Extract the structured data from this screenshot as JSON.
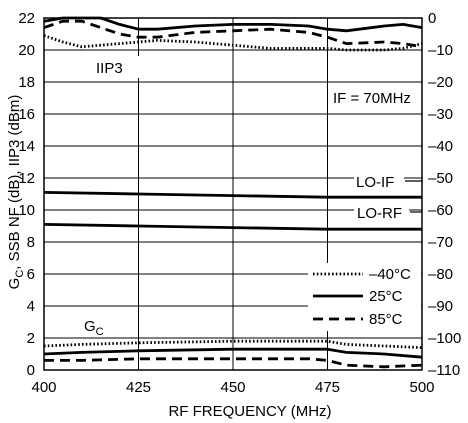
{
  "chart_data": {
    "type": "line",
    "title": "",
    "xlabel": "RF FREQUENCY (MHz)",
    "ylabel_left_main": "G",
    "ylabel_left_sub": "C",
    "ylabel_left_rest": ", SSB NF (dB), IIP3 (dBm)",
    "x_ticks": [
      "400",
      "425",
      "450",
      "475",
      "500"
    ],
    "x_range": [
      400,
      500
    ],
    "y_left_ticks": [
      "0",
      "2",
      "4",
      "6",
      "8",
      "10",
      "12",
      "14",
      "16",
      "18",
      "20",
      "22"
    ],
    "y_left_range": [
      0,
      22
    ],
    "y_right_ticks": [
      "0",
      "–10",
      "–20",
      "–30",
      "–40",
      "–50",
      "–60",
      "–70",
      "–80",
      "–90",
      "–100",
      "–110"
    ],
    "y_right_range": [
      -110,
      0
    ],
    "grid": true,
    "annotations": {
      "iip3": "IIP3",
      "if_cond": "IF = 70MHz",
      "lo_if": "LO-IF",
      "lo_rf": "LO-RF",
      "gc_main": "G",
      "gc_sub": "C"
    },
    "legend": {
      "placement": "bottom-right",
      "entries": [
        {
          "label": "–40°C",
          "style": "dotted"
        },
        {
          "label": "25°C",
          "style": "solid"
        },
        {
          "label": "85°C",
          "style": "dashed"
        }
      ]
    },
    "series": [
      {
        "group": "IIP3",
        "temp": "–40°C",
        "style": "dotted",
        "axis": "left",
        "x": [
          400,
          405,
          410,
          415,
          420,
          425,
          430,
          440,
          450,
          460,
          470,
          475,
          480,
          490,
          495,
          500
        ],
        "y": [
          20.9,
          20.5,
          20.2,
          20.3,
          20.4,
          20.5,
          20.6,
          20.5,
          20.3,
          20.1,
          20.1,
          20.1,
          20.0,
          20.0,
          20.1,
          20.4
        ]
      },
      {
        "group": "IIP3",
        "temp": "25°C",
        "style": "solid",
        "axis": "left",
        "x": [
          400,
          405,
          410,
          415,
          420,
          425,
          430,
          440,
          450,
          460,
          470,
          475,
          480,
          490,
          495,
          500
        ],
        "y": [
          21.8,
          22.0,
          22.0,
          22.0,
          21.6,
          21.3,
          21.3,
          21.5,
          21.6,
          21.6,
          21.5,
          21.3,
          21.2,
          21.5,
          21.6,
          21.4
        ]
      },
      {
        "group": "IIP3",
        "temp": "85°C",
        "style": "dashed",
        "axis": "left",
        "x": [
          400,
          405,
          410,
          415,
          420,
          425,
          430,
          440,
          450,
          460,
          470,
          475,
          480,
          490,
          495,
          500
        ],
        "y": [
          21.4,
          21.8,
          21.8,
          21.4,
          21.0,
          20.8,
          20.8,
          21.1,
          21.2,
          21.3,
          21.1,
          20.8,
          20.4,
          20.5,
          20.4,
          20.2
        ]
      },
      {
        "group": "LO-IF",
        "temp": "25°C",
        "style": "solid",
        "axis": "left",
        "x": [
          400,
          425,
          450,
          475,
          500
        ],
        "y": [
          11.1,
          11.0,
          10.9,
          10.8,
          10.8
        ]
      },
      {
        "group": "LO-RF",
        "temp": "25°C",
        "style": "solid",
        "axis": "left",
        "x": [
          400,
          425,
          450,
          475,
          500
        ],
        "y": [
          9.1,
          9.0,
          8.9,
          8.8,
          8.8
        ]
      },
      {
        "group": "GC",
        "temp": "–40°C",
        "style": "dotted",
        "axis": "left",
        "x": [
          400,
          410,
          425,
          450,
          470,
          475,
          480,
          490,
          500
        ],
        "y": [
          1.5,
          1.6,
          1.7,
          1.8,
          1.8,
          1.8,
          1.6,
          1.5,
          1.4
        ]
      },
      {
        "group": "GC",
        "temp": "25°C",
        "style": "solid",
        "axis": "left",
        "x": [
          400,
          410,
          425,
          450,
          470,
          475,
          480,
          490,
          500
        ],
        "y": [
          1.0,
          1.1,
          1.2,
          1.3,
          1.3,
          1.3,
          1.1,
          1.0,
          0.8
        ]
      },
      {
        "group": "GC",
        "temp": "85°C",
        "style": "dashed",
        "axis": "left",
        "x": [
          400,
          410,
          425,
          450,
          470,
          475,
          480,
          490,
          500
        ],
        "y": [
          0.6,
          0.6,
          0.7,
          0.7,
          0.7,
          0.6,
          0.3,
          0.2,
          0.3
        ]
      }
    ]
  }
}
